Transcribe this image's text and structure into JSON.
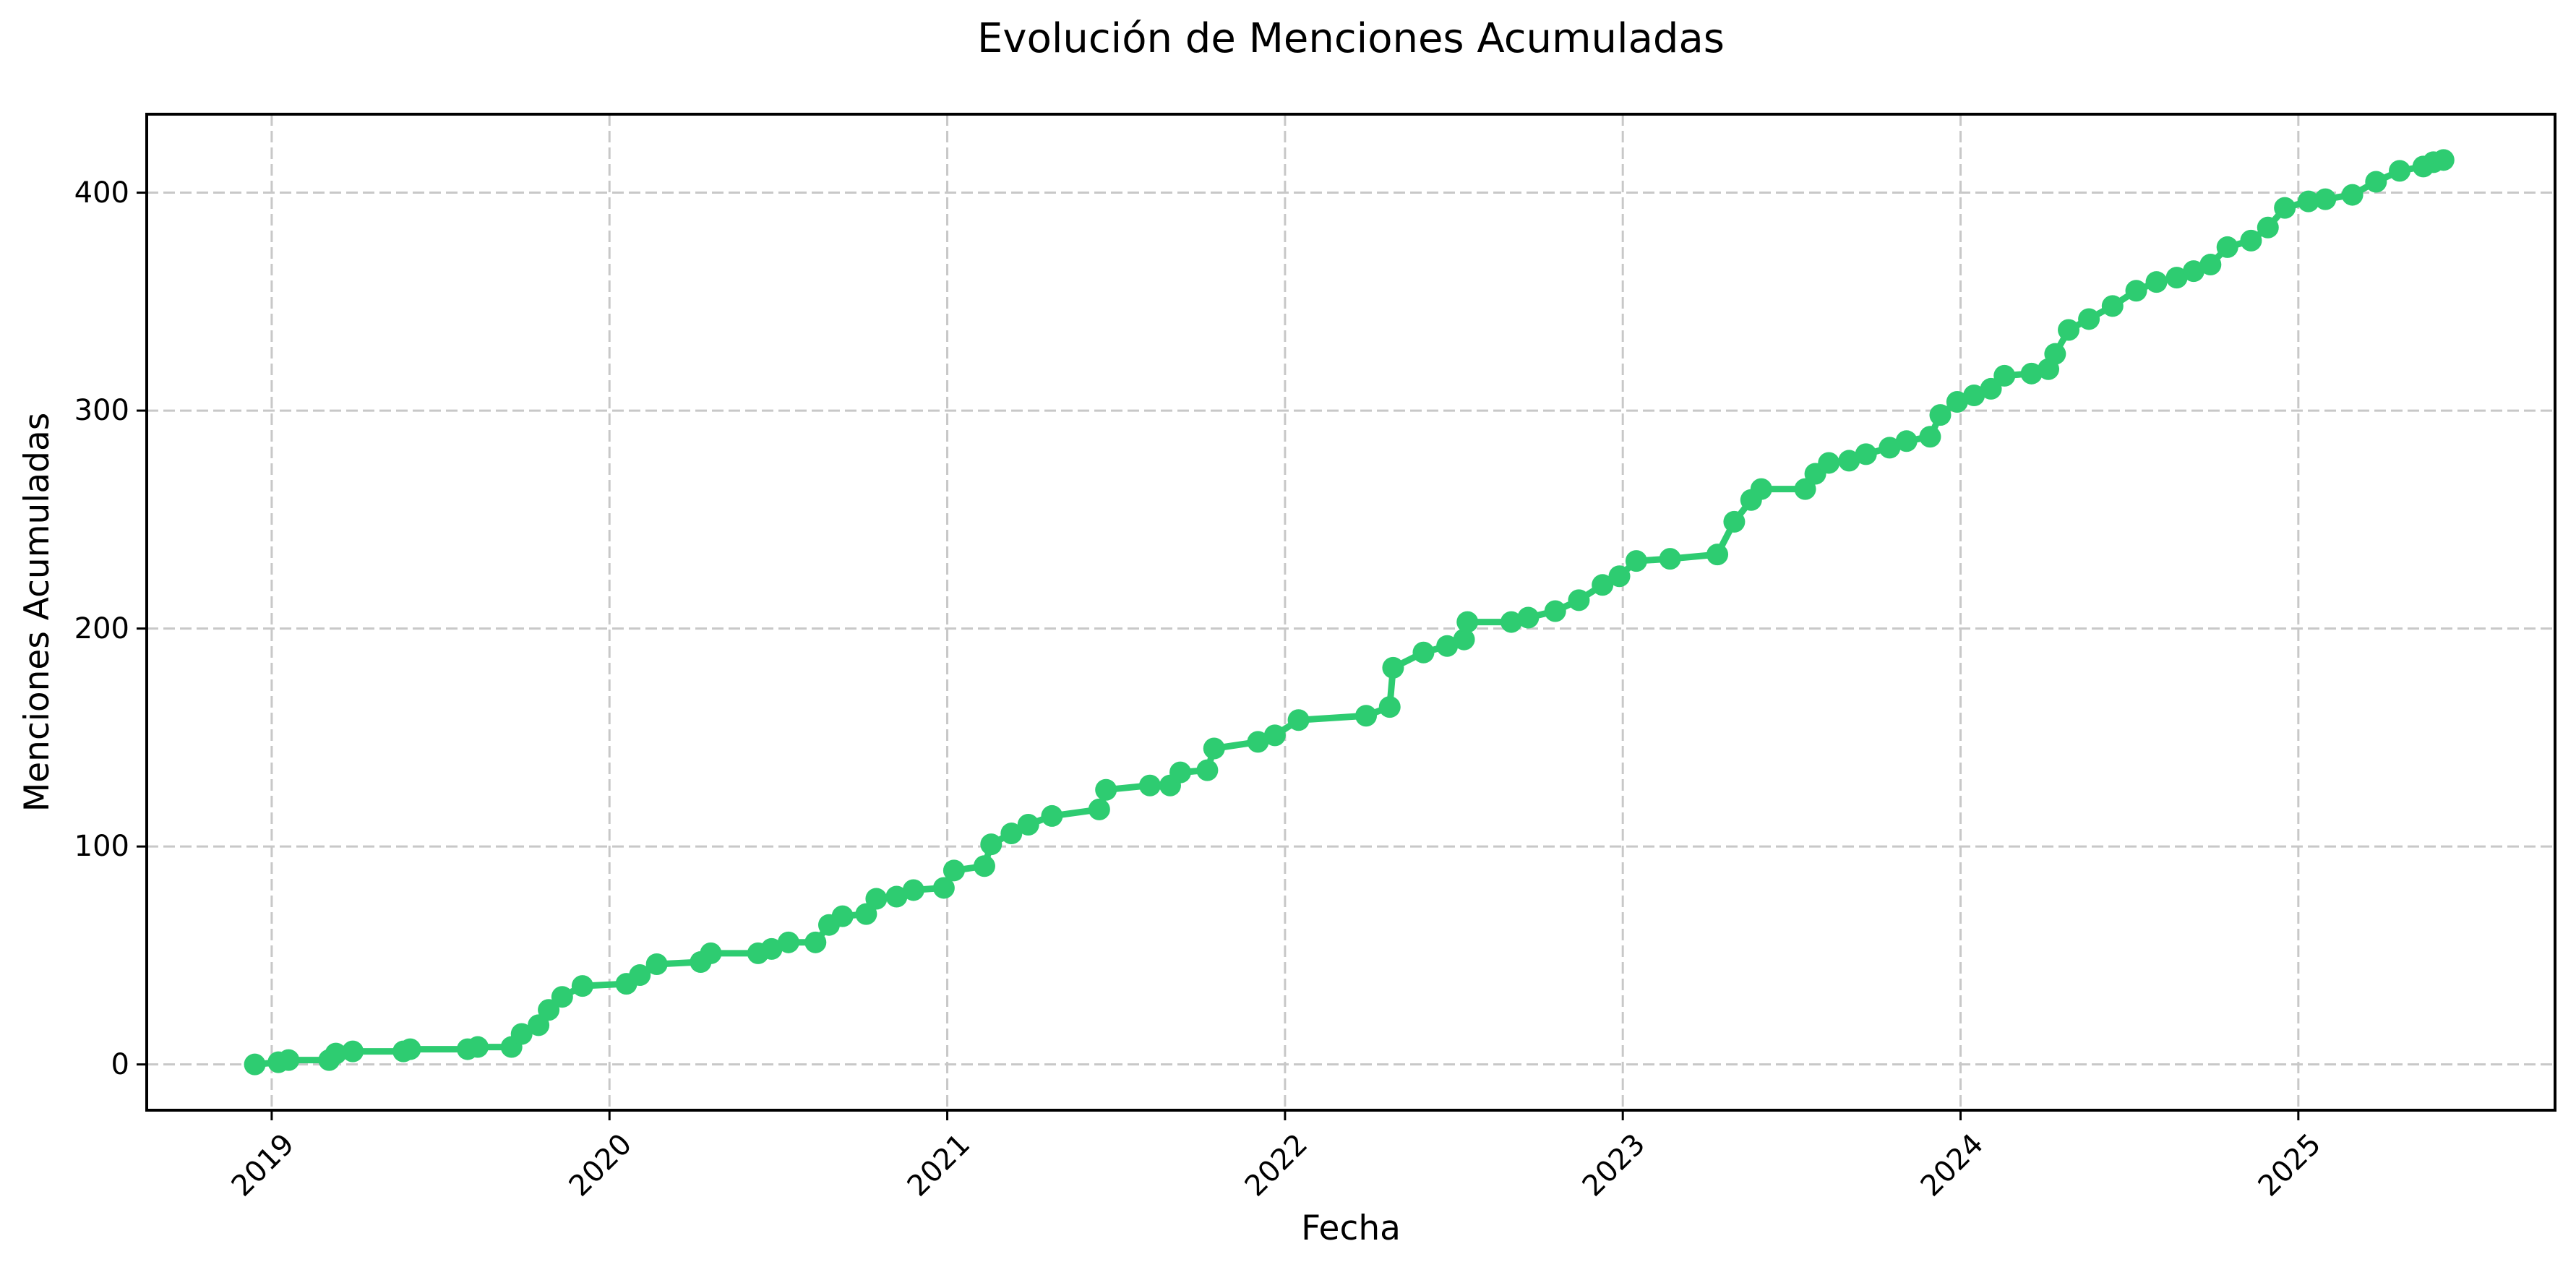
{
  "figure": {
    "title": "Evolución de Menciones Acumuladas",
    "xlabel": "Fecha",
    "ylabel": "Menciones Acumuladas"
  },
  "colors": {
    "line": "#2ecc71",
    "grid": "#c8c8c8",
    "axis": "#000000",
    "background": "#ffffff"
  },
  "chart_data": {
    "type": "line",
    "title": "Evolución de Menciones Acumuladas",
    "xlabel": "Fecha",
    "ylabel": "Menciones Acumuladas",
    "x_unit": "decimal_year",
    "xlim": [
      2018.63,
      2025.76
    ],
    "ylim": [
      -21,
      436
    ],
    "xticks": [
      2019,
      2020,
      2021,
      2022,
      2023,
      2024,
      2025
    ],
    "xtick_labels": [
      "2019",
      "2020",
      "2021",
      "2022",
      "2023",
      "2024",
      "2025"
    ],
    "xtick_rotation": 45,
    "yticks": [
      0,
      100,
      200,
      300,
      400
    ],
    "ytick_labels": [
      "0",
      "100",
      "200",
      "300",
      "400"
    ],
    "grid": true,
    "grid_style": "dashed",
    "legend": null,
    "markers": "circle",
    "series": [
      {
        "name": "Menciones Acumuladas",
        "color": "#2ecc71",
        "x": [
          2018.95,
          2019.02,
          2019.05,
          2019.17,
          2019.19,
          2019.24,
          2019.39,
          2019.41,
          2019.58,
          2019.61,
          2019.71,
          2019.74,
          2019.79,
          2019.82,
          2019.86,
          2019.92,
          2020.05,
          2020.09,
          2020.14,
          2020.27,
          2020.3,
          2020.44,
          2020.48,
          2020.53,
          2020.61,
          2020.65,
          2020.69,
          2020.76,
          2020.79,
          2020.85,
          2020.9,
          2020.99,
          2021.02,
          2021.11,
          2021.13,
          2021.19,
          2021.24,
          2021.31,
          2021.45,
          2021.47,
          2021.6,
          2021.66,
          2021.69,
          2021.77,
          2021.79,
          2021.92,
          2021.97,
          2022.04,
          2022.24,
          2022.31,
          2022.32,
          2022.41,
          2022.48,
          2022.53,
          2022.54,
          2022.67,
          2022.72,
          2022.8,
          2022.87,
          2022.94,
          2022.99,
          2023.04,
          2023.14,
          2023.28,
          2023.33,
          2023.38,
          2023.41,
          2023.54,
          2023.57,
          2023.61,
          2023.67,
          2023.72,
          2023.79,
          2023.84,
          2023.91,
          2023.94,
          2023.99,
          2024.04,
          2024.09,
          2024.13,
          2024.21,
          2024.26,
          2024.28,
          2024.32,
          2024.38,
          2024.45,
          2024.52,
          2024.58,
          2024.64,
          2024.69,
          2024.74,
          2024.79,
          2024.86,
          2024.91,
          2024.96,
          2025.03,
          2025.08,
          2025.16,
          2025.23,
          2025.3,
          2025.37,
          2025.4,
          2025.43
        ],
        "values": [
          0,
          1,
          2,
          2,
          5,
          6,
          6,
          7,
          7,
          8,
          8,
          14,
          18,
          25,
          31,
          36,
          37,
          41,
          46,
          47,
          51,
          51,
          53,
          56,
          56,
          64,
          68,
          69,
          76,
          77,
          80,
          81,
          89,
          91,
          101,
          106,
          110,
          114,
          117,
          126,
          128,
          128,
          134,
          135,
          145,
          148,
          151,
          158,
          160,
          164,
          182,
          189,
          192,
          195,
          203,
          203,
          205,
          208,
          213,
          220,
          224,
          231,
          232,
          234,
          249,
          259,
          264,
          264,
          271,
          276,
          277,
          280,
          283,
          286,
          288,
          298,
          304,
          307,
          310,
          316,
          317,
          319,
          326,
          337,
          342,
          348,
          355,
          359,
          361,
          364,
          367,
          375,
          378,
          384,
          393,
          396,
          397,
          399,
          405,
          410,
          412,
          414,
          415
        ]
      }
    ]
  }
}
